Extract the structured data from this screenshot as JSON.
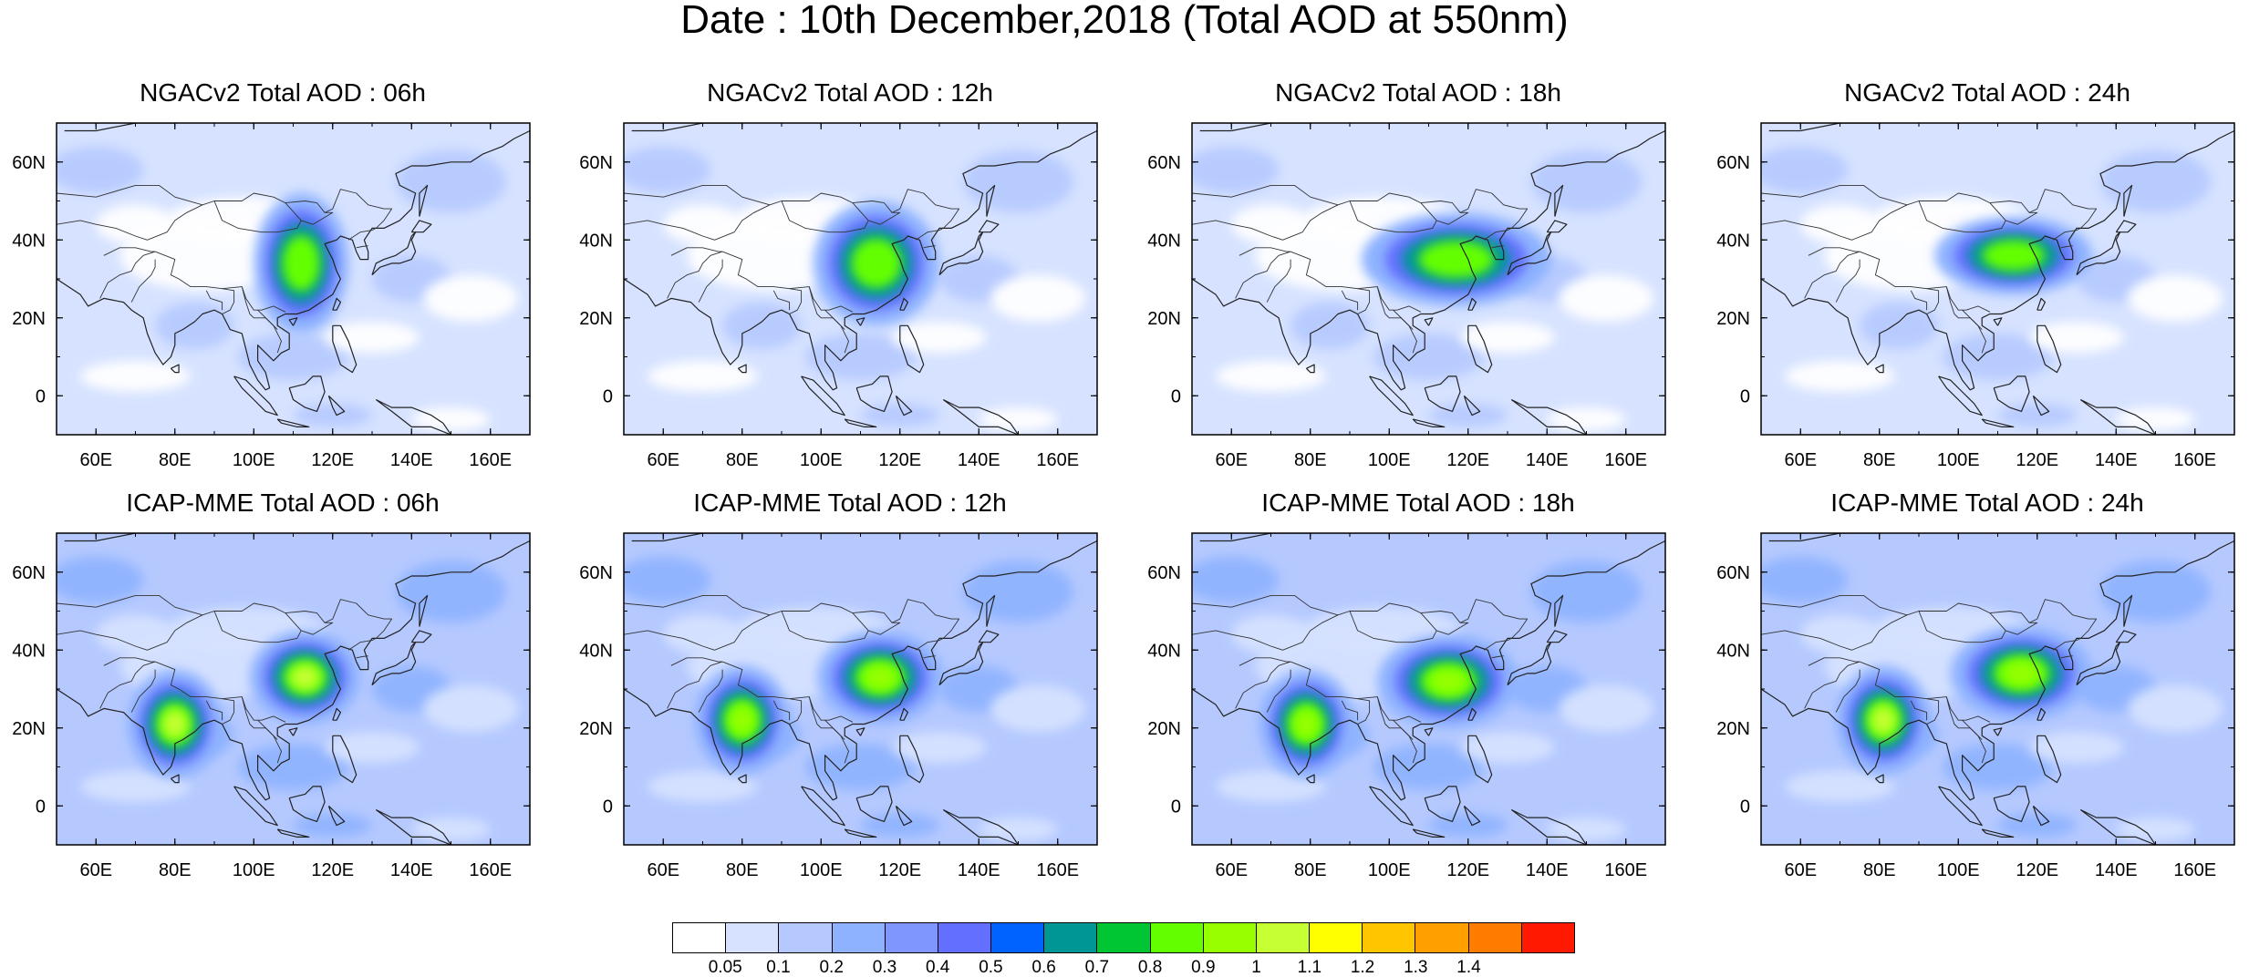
{
  "title": "Date : 10th December,2018 (Total AOD at 550nm)",
  "panels": [
    {
      "title": "NGACv2 Total AOD : 06h",
      "model": "NGACv2",
      "hour": "06h",
      "hotspots": [
        {
          "lon": 112,
          "lat": 34,
          "level": 9,
          "rx": 6,
          "ry": 9
        }
      ]
    },
    {
      "title": "NGACv2 Total AOD : 12h",
      "model": "NGACv2",
      "hour": "12h",
      "hotspots": [
        {
          "lon": 114,
          "lat": 34,
          "level": 9,
          "rx": 8,
          "ry": 8
        }
      ]
    },
    {
      "title": "NGACv2 Total AOD : 18h",
      "model": "NGACv2",
      "hour": "18h",
      "hotspots": [
        {
          "lon": 117,
          "lat": 35,
          "level": 9,
          "rx": 12,
          "ry": 6
        }
      ]
    },
    {
      "title": "NGACv2 Total AOD : 24h",
      "model": "NGACv2",
      "hour": "24h",
      "hotspots": [
        {
          "lon": 114,
          "lat": 36,
          "level": 9,
          "rx": 10,
          "ry": 5
        }
      ]
    },
    {
      "title": "ICAP-MME Total AOD : 06h",
      "model": "ICAP-MME",
      "hour": "06h",
      "hotspots": [
        {
          "lon": 80,
          "lat": 21,
          "level": 11,
          "rx": 6,
          "ry": 7
        },
        {
          "lon": 113,
          "lat": 33,
          "level": 11,
          "rx": 7,
          "ry": 6
        }
      ]
    },
    {
      "title": "ICAP-MME Total AOD : 12h",
      "model": "ICAP-MME",
      "hour": "12h",
      "hotspots": [
        {
          "lon": 80,
          "lat": 22,
          "level": 10,
          "rx": 6,
          "ry": 7
        },
        {
          "lon": 115,
          "lat": 33,
          "level": 10,
          "rx": 8,
          "ry": 6
        }
      ]
    },
    {
      "title": "ICAP-MME Total AOD : 18h",
      "model": "ICAP-MME",
      "hour": "18h",
      "hotspots": [
        {
          "lon": 79,
          "lat": 21,
          "level": 10,
          "rx": 6,
          "ry": 7
        },
        {
          "lon": 115,
          "lat": 32,
          "level": 10,
          "rx": 9,
          "ry": 6
        }
      ]
    },
    {
      "title": "ICAP-MME Total AOD : 24h",
      "model": "ICAP-MME",
      "hour": "24h",
      "hotspots": [
        {
          "lon": 81,
          "lat": 22,
          "level": 11,
          "rx": 6,
          "ry": 7
        },
        {
          "lon": 116,
          "lat": 34,
          "level": 10,
          "rx": 9,
          "ry": 6
        }
      ]
    }
  ],
  "map": {
    "lon_range": [
      50,
      170
    ],
    "lat_range": [
      -10,
      70
    ],
    "lon_ticks": [
      60,
      80,
      100,
      120,
      140,
      160
    ],
    "lon_tick_labels": [
      "60E",
      "80E",
      "100E",
      "120E",
      "140E",
      "160E"
    ],
    "lat_ticks": [
      0,
      20,
      40,
      60
    ],
    "lat_tick_labels": [
      "0",
      "20N",
      "40N",
      "60N"
    ]
  },
  "colorbar": {
    "labels": [
      "0.05",
      "0.1",
      "0.2",
      "0.3",
      "0.4",
      "0.5",
      "0.6",
      "0.7",
      "0.8",
      "0.9",
      "1",
      "1.1",
      "1.2",
      "1.3",
      "1.4"
    ],
    "colors": [
      "#ffffff",
      "#d6e2ff",
      "#b5c9ff",
      "#8eb2ff",
      "#7f96ff",
      "#6370ff",
      "#0063ff",
      "#009696",
      "#00c633",
      "#63ff00",
      "#96ff00",
      "#c6ff33",
      "#ffff00",
      "#ffc600",
      "#ffa000",
      "#ff7c00",
      "#ff1900"
    ]
  }
}
